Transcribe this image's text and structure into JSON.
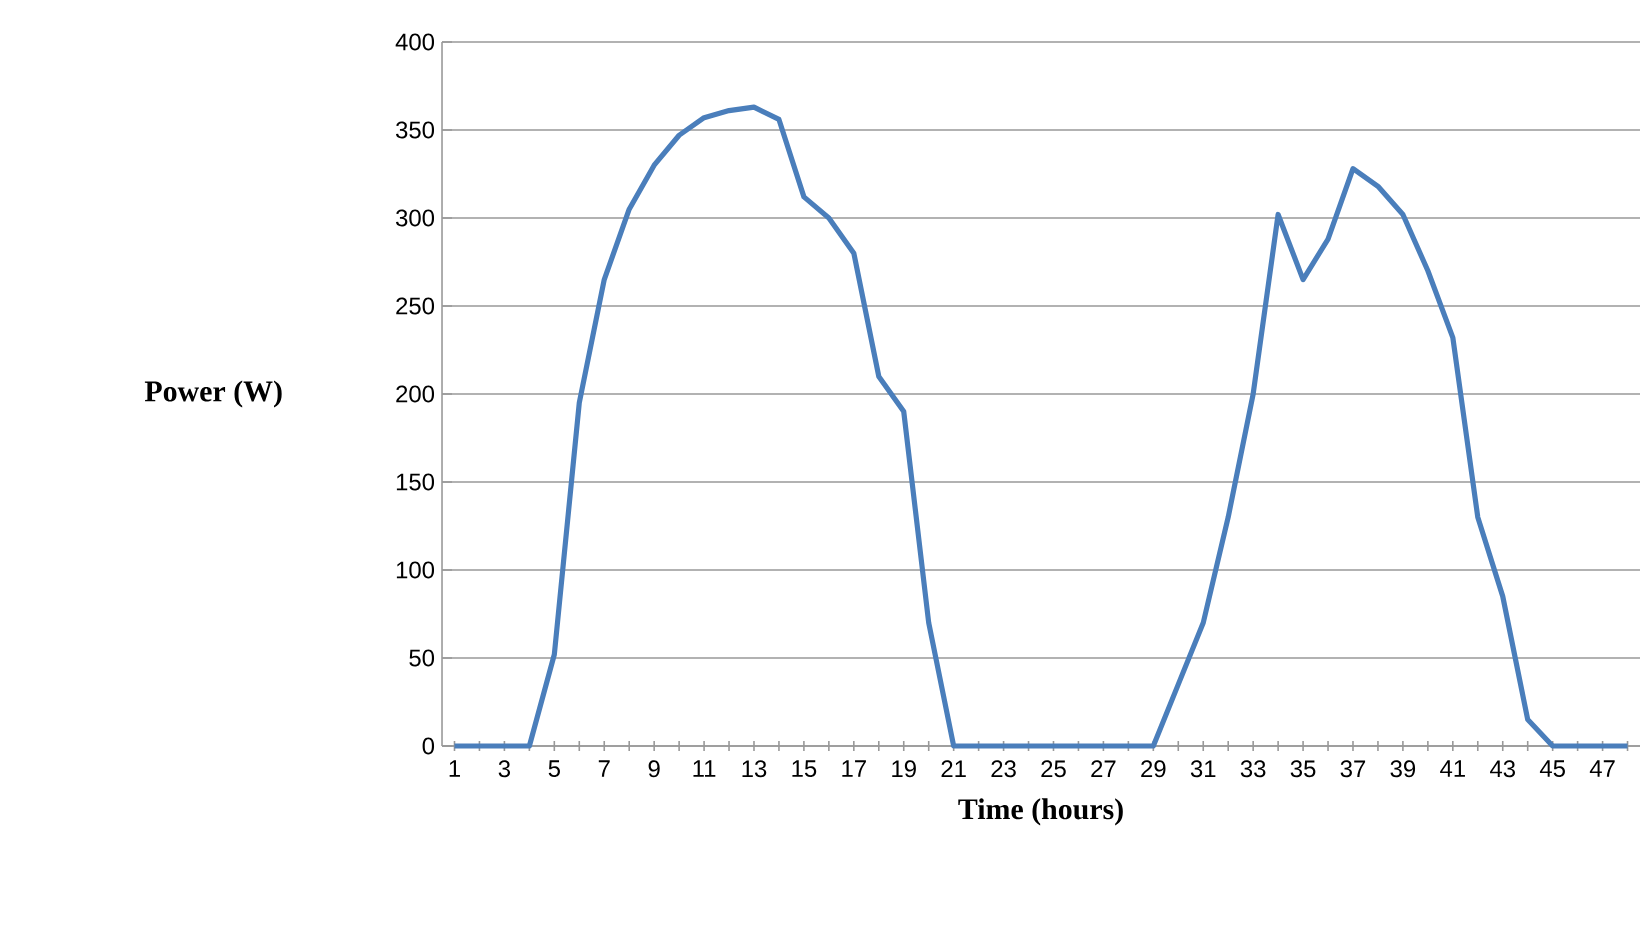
{
  "chart_data": {
    "type": "line",
    "xlabel": "Time (hours)",
    "ylabel": "Power (W)",
    "categories": [
      "1",
      null,
      "3",
      null,
      "5",
      null,
      "7",
      null,
      "9",
      null,
      "11",
      null,
      "13",
      null,
      "15",
      null,
      "17",
      null,
      "19",
      null,
      "21",
      null,
      "23",
      null,
      "25",
      null,
      "27",
      null,
      "29",
      null,
      "31",
      null,
      "33",
      null,
      "35",
      null,
      "37",
      null,
      "39",
      null,
      "41",
      null,
      "43",
      null,
      "45",
      null,
      "47",
      null
    ],
    "series": [
      {
        "color": "#4a7ebb",
        "values": [
          0,
          0,
          0,
          0,
          52,
          195,
          265,
          305,
          330,
          347,
          357,
          361,
          363,
          356,
          312,
          300,
          280,
          210,
          190,
          70,
          0,
          0,
          0,
          0,
          0,
          0,
          0,
          0,
          0,
          35,
          70,
          130,
          200,
          302,
          265,
          288,
          328,
          318,
          302,
          270,
          232,
          130,
          85,
          15,
          0,
          0,
          0,
          0
        ]
      }
    ],
    "ylim": [
      0,
      400
    ],
    "yticks": [
      0,
      50,
      100,
      150,
      200,
      250,
      300,
      350,
      400
    ],
    "grid": "y",
    "marker": "none"
  }
}
